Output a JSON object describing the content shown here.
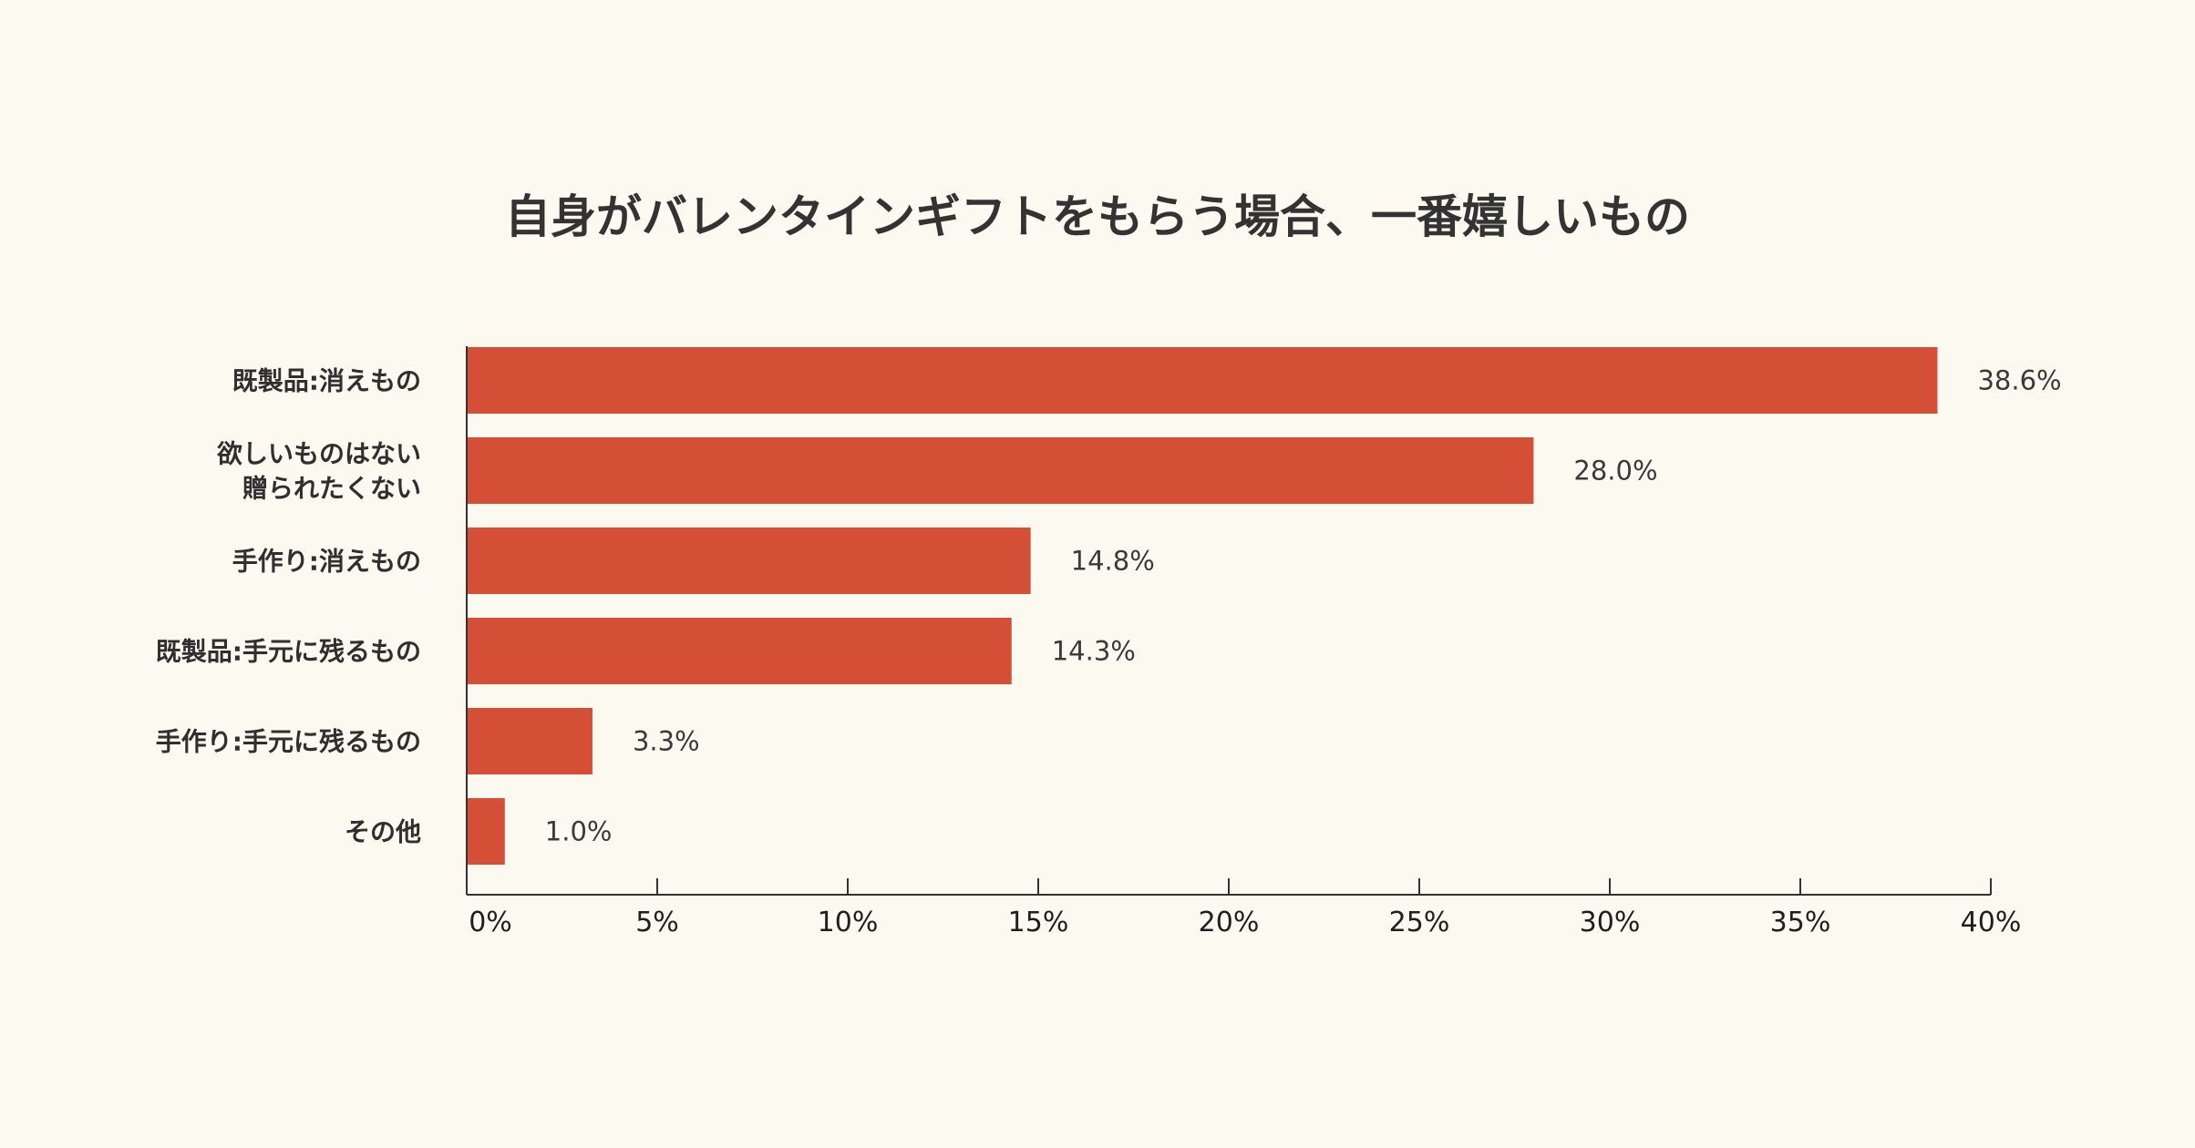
{
  "chart_data": {
    "type": "bar",
    "orientation": "horizontal",
    "title": "自身がバレンタインギフトをもらう場合、一番嬉しいもの",
    "categories": [
      [
        "既製品:消えもの"
      ],
      [
        "欲しいものはない",
        "贈られたくない"
      ],
      [
        "手作り:消えもの"
      ],
      [
        "既製品:手元に残るもの"
      ],
      [
        "手作り:手元に残るもの"
      ],
      [
        "その他"
      ]
    ],
    "values": [
      38.6,
      28.0,
      14.8,
      14.3,
      3.3,
      1.0
    ],
    "value_labels": [
      "38.6%",
      "28.0%",
      "14.8%",
      "14.3%",
      "3.3%",
      "1.0%"
    ],
    "xlim": [
      0,
      40
    ],
    "xticks": [
      0,
      5,
      10,
      15,
      20,
      25,
      30,
      35,
      40
    ],
    "xtick_labels": [
      "0%",
      "5%",
      "10%",
      "15%",
      "20%",
      "25%",
      "30%",
      "35%",
      "40%"
    ],
    "grid": false,
    "legend": "none",
    "bar_color": "#d44f36",
    "axis_color": "#333333"
  }
}
